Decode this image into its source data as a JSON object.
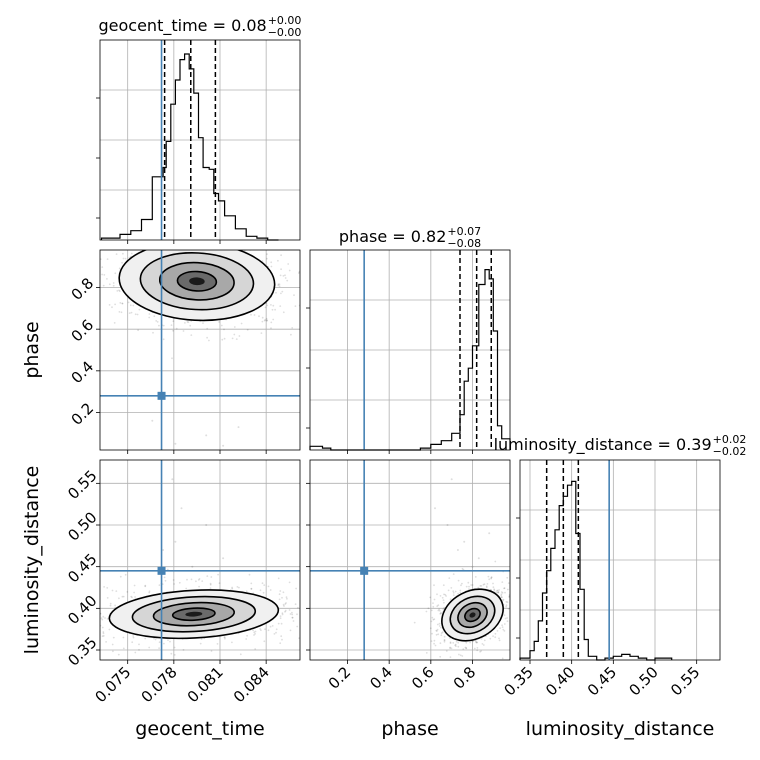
{
  "chart_data": {
    "type": "corner",
    "parameters": [
      "geocent_time",
      "phase",
      "luminosity_distance"
    ],
    "axis_labels": {
      "geocent_time": "geocent_time",
      "phase": "phase",
      "luminosity_distance": "luminosity_distance"
    },
    "titles": [
      {
        "param": "geocent_time",
        "text": "geocent_time = 0.08",
        "plus": "+0.00",
        "minus": "−0.00"
      },
      {
        "param": "phase",
        "text": "phase = 0.82",
        "plus": "+0.07",
        "minus": "−0.08"
      },
      {
        "param": "luminosity_distance",
        "text": "luminosity_distance = 0.39",
        "plus": "+0.02",
        "minus": "−0.02"
      }
    ],
    "ranges": {
      "geocent_time": [
        0.0732,
        0.0862
      ],
      "phase": [
        0.02,
        0.98
      ],
      "luminosity_distance": [
        0.338,
        0.578
      ]
    },
    "ticks": {
      "geocent_time": {
        "values": [
          0.075,
          0.078,
          0.081,
          0.084
        ],
        "labels": [
          "0.075",
          "0.078",
          "0.081",
          "0.084"
        ]
      },
      "phase": {
        "values": [
          0.2,
          0.4,
          0.6,
          0.8
        ],
        "labels": [
          "0.2",
          "0.4",
          "0.6",
          "0.8"
        ]
      },
      "luminosity_distance": {
        "values": [
          0.35,
          0.4,
          0.45,
          0.5,
          0.55
        ],
        "labels": [
          "0.35",
          "0.40",
          "0.45",
          "0.50",
          "0.55"
        ]
      }
    },
    "truths": {
      "geocent_time": 0.0772,
      "phase": 0.28,
      "luminosity_distance": 0.445
    },
    "quantiles": {
      "geocent_time": [
        0.0774,
        0.0791,
        0.0807
      ],
      "phase": [
        0.74,
        0.82,
        0.89
      ],
      "luminosity_distance": [
        0.37,
        0.39,
        0.408
      ]
    },
    "histograms": {
      "geocent_time": {
        "edges": [
          0.0733,
          0.0745,
          0.0752,
          0.0759,
          0.0766,
          0.0773,
          0.0775,
          0.0778,
          0.0781,
          0.0784,
          0.0787,
          0.079,
          0.0793,
          0.0796,
          0.0799,
          0.0803,
          0.0806,
          0.0809,
          0.0813,
          0.082,
          0.0827,
          0.0834,
          0.0841,
          0.0848
        ],
        "counts": [
          0.01,
          0.03,
          0.05,
          0.11,
          0.34,
          0.39,
          0.53,
          0.73,
          0.86,
          0.97,
          1.0,
          0.92,
          0.79,
          0.55,
          0.39,
          0.38,
          0.25,
          0.21,
          0.13,
          0.06,
          0.02,
          0.01,
          0.0
        ]
      },
      "phase": {
        "edges": [
          0.02,
          0.08,
          0.12,
          0.17,
          0.28,
          0.38,
          0.48,
          0.55,
          0.6,
          0.65,
          0.7,
          0.74,
          0.76,
          0.78,
          0.8,
          0.83,
          0.86,
          0.88,
          0.9,
          0.92,
          0.94,
          0.98
        ],
        "counts": [
          0.02,
          0.01,
          0.0,
          0.0,
          0.0,
          0.0,
          0.0,
          0.01,
          0.03,
          0.05,
          0.09,
          0.19,
          0.37,
          0.44,
          0.56,
          0.89,
          0.97,
          0.92,
          0.64,
          0.13,
          0.06
        ]
      },
      "luminosity_distance": {
        "edges": [
          0.338,
          0.35,
          0.355,
          0.36,
          0.365,
          0.37,
          0.375,
          0.38,
          0.385,
          0.39,
          0.395,
          0.4,
          0.405,
          0.41,
          0.415,
          0.42,
          0.43,
          0.44,
          0.45,
          0.46,
          0.47,
          0.48,
          0.49,
          0.5,
          0.52
        ],
        "counts": [
          0.01,
          0.05,
          0.1,
          0.21,
          0.36,
          0.48,
          0.6,
          0.7,
          0.83,
          0.88,
          0.94,
          0.96,
          0.68,
          0.38,
          0.11,
          0.02,
          0.0,
          0.01,
          0.02,
          0.03,
          0.02,
          0.01,
          0.0,
          0.01
        ]
      }
    },
    "joint": [
      {
        "x": "geocent_time",
        "y": "phase",
        "center": [
          0.0795,
          0.83
        ],
        "spread": [
          0.0023,
          0.085
        ],
        "corr": 0.05,
        "outliers": [
          [
            0.0766,
            0.16
          ],
          [
            0.0801,
            0.09
          ],
          [
            0.0822,
            0.13
          ],
          [
            0.0781,
            0.05
          ],
          [
            0.0812,
            0.04
          ]
        ]
      },
      {
        "x": "geocent_time",
        "y": "luminosity_distance",
        "center": [
          0.0793,
          0.393
        ],
        "spread": [
          0.0025,
          0.013
        ],
        "corr": -0.05,
        "outliers": [
          [
            0.0773,
            0.47
          ],
          [
            0.0781,
            0.48
          ],
          [
            0.0792,
            0.45
          ],
          [
            0.0801,
            0.5
          ],
          [
            0.0812,
            0.46
          ],
          [
            0.0785,
            0.52
          ],
          [
            0.0779,
            0.555
          ]
        ]
      },
      {
        "x": "phase",
        "y": "luminosity_distance",
        "center": [
          0.8,
          0.392
        ],
        "spread": [
          0.07,
          0.013
        ],
        "corr": -0.45,
        "outliers": [
          [
            0.73,
            0.47
          ],
          [
            0.76,
            0.48
          ],
          [
            0.8,
            0.45
          ],
          [
            0.68,
            0.5
          ],
          [
            0.83,
            0.46
          ],
          [
            0.62,
            0.52
          ],
          [
            0.88,
            0.49
          ],
          [
            0.7,
            0.555
          ]
        ]
      }
    ]
  }
}
